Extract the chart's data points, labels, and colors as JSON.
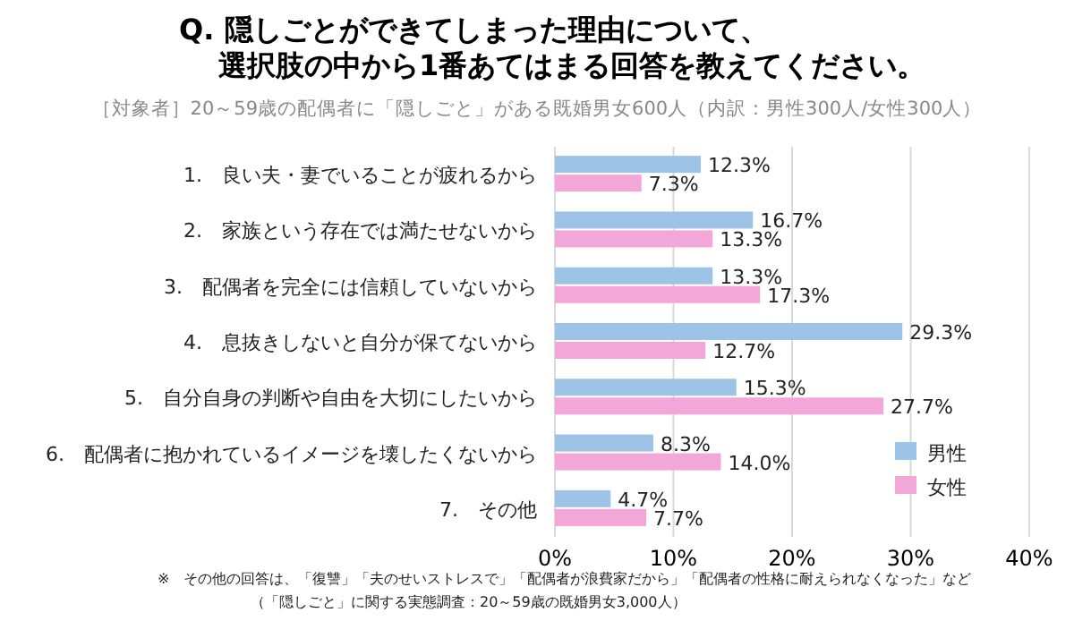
{
  "chart_data": {
    "type": "bar",
    "orientation": "horizontal",
    "title": "Q. 隠しごとができてしまった理由について、選択肢の中から1番あてはまる回答を教えてください。",
    "subtitle": "［対象者］20～59歳の配偶者に「隠しごと」がある既婚男女600人（内訳：男性300人/女性300人）",
    "categories": [
      "1.　良い夫・妻でいることが疲れるから",
      "2.　家族という存在では満たせないから",
      "3.　配偶者を完全には信頼していないから",
      "4.　息抜きしないと自分が保てないから",
      "5.　自分自身の判断や自由を大切にしたいから",
      "6.　配偶者に抱かれているイメージを壊したくないから",
      "7.　その他"
    ],
    "series": [
      {
        "name": "男性",
        "color": "#9dc3e6",
        "values": [
          12.3,
          16.7,
          13.3,
          29.3,
          15.3,
          8.3,
          4.7
        ],
        "value_labels": [
          "12.3%",
          "16.7%",
          "13.3%",
          "29.3%",
          "15.3%",
          "8.3%",
          "4.7%"
        ]
      },
      {
        "name": "女性",
        "color": "#f2a7d8",
        "values": [
          7.3,
          13.3,
          17.3,
          12.7,
          27.7,
          14.0,
          7.7
        ],
        "value_labels": [
          "7.3%",
          "13.3%",
          "17.3%",
          "12.7%",
          "27.7%",
          "14.0%",
          "7.7%"
        ]
      }
    ],
    "xlim": [
      0,
      40
    ],
    "xticks": [
      {
        "value": 0,
        "label": "0%"
      },
      {
        "value": 10,
        "label": "10%"
      },
      {
        "value": 20,
        "label": "20%"
      },
      {
        "value": 30,
        "label": "30%"
      },
      {
        "value": 40,
        "label": "40%"
      }
    ],
    "grid": "x",
    "legend": "bottom right",
    "annotations": [
      "※　その他の回答は、「復讐」「夫のせいストレスで」「配偶者が浪費家だから」「配偶者の性格に耐えられなくなった」など",
      "（「隠しごと」に関する実態調査：20～59歳の既婚男女3,000人）"
    ]
  }
}
